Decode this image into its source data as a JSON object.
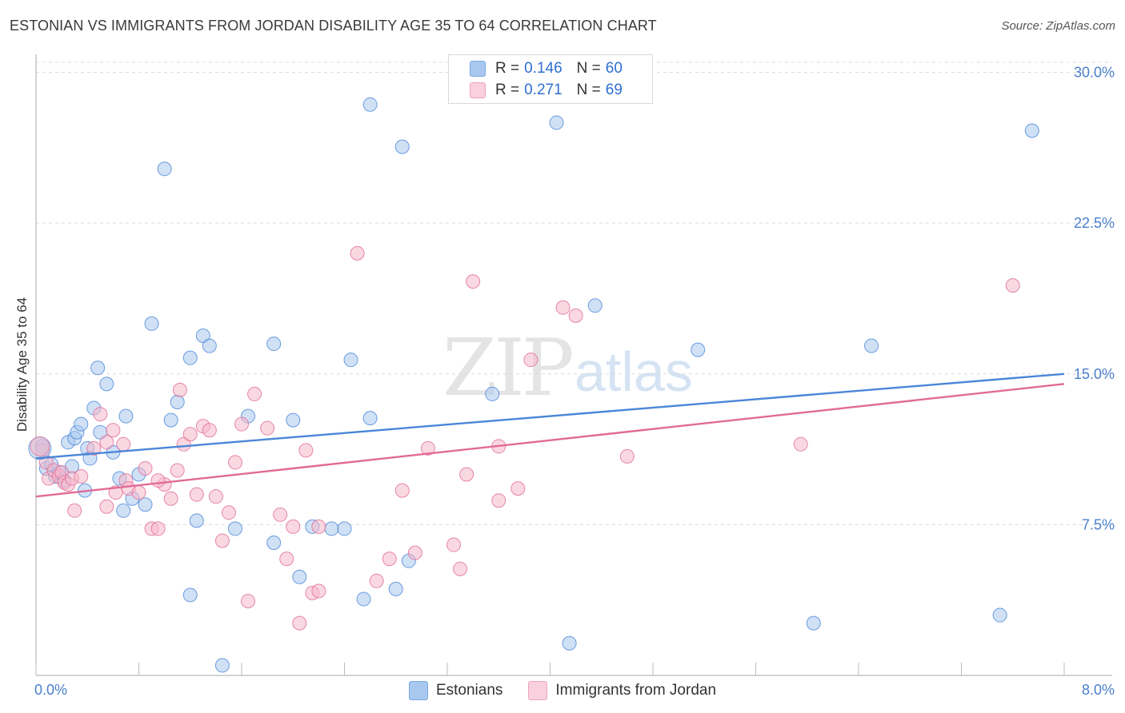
{
  "header": {
    "title": "ESTONIAN VS IMMIGRANTS FROM JORDAN DISABILITY AGE 35 TO 64 CORRELATION CHART",
    "source": "Source: ZipAtlas.com"
  },
  "watermark": {
    "zip": "ZIP",
    "atlas": "atlas"
  },
  "legend": {
    "rows": [
      {
        "r_label": "R =",
        "r_value": "0.146",
        "n_label": "N =",
        "n_value": "60",
        "color": "#a9c8ef"
      },
      {
        "r_label": "R =",
        "r_value": "0.271",
        "n_label": "N =",
        "n_value": "69",
        "color": "#f5b8cb"
      }
    ]
  },
  "bottom_legend": [
    {
      "label": "Estonians",
      "color": "#a9c8ef"
    },
    {
      "label": "Immigrants from Jordan",
      "color": "#f5b8cb"
    }
  ],
  "chart_data": {
    "type": "scatter",
    "title": "ESTONIAN VS IMMIGRANTS FROM JORDAN DISABILITY AGE 35 TO 64 CORRELATION CHART",
    "xlabel": "",
    "ylabel": "Disability Age 35 to 64",
    "xlim": [
      0,
      8
    ],
    "ylim": [
      0,
      30.5
    ],
    "x_tick_labels": [
      "0.0%",
      "8.0%"
    ],
    "y_ticks": [
      7.5,
      15.0,
      22.5,
      30.0
    ],
    "y_tick_labels": [
      "7.5%",
      "15.0%",
      "22.5%",
      "30.0%"
    ],
    "grid": true,
    "series": [
      {
        "name": "Estonians",
        "color": "#4a86d8",
        "fill": "#a9c8ef",
        "trend": {
          "x": [
            0,
            8
          ],
          "y": [
            10.8,
            15.0
          ]
        },
        "points": [
          [
            0.05,
            11.4
          ],
          [
            0.08,
            10.3
          ],
          [
            0.12,
            10.5
          ],
          [
            0.15,
            9.9
          ],
          [
            0.18,
            10.1
          ],
          [
            0.22,
            9.7
          ],
          [
            0.25,
            11.6
          ],
          [
            0.28,
            10.4
          ],
          [
            0.3,
            11.8
          ],
          [
            0.32,
            12.1
          ],
          [
            0.35,
            12.5
          ],
          [
            0.38,
            9.2
          ],
          [
            0.4,
            11.3
          ],
          [
            0.42,
            10.8
          ],
          [
            0.45,
            13.3
          ],
          [
            0.48,
            15.3
          ],
          [
            0.5,
            12.1
          ],
          [
            0.55,
            14.5
          ],
          [
            0.6,
            11.1
          ],
          [
            0.65,
            9.8
          ],
          [
            0.68,
            8.2
          ],
          [
            0.7,
            12.9
          ],
          [
            0.75,
            8.8
          ],
          [
            0.8,
            10.0
          ],
          [
            0.85,
            8.5
          ],
          [
            0.9,
            17.5
          ],
          [
            1.0,
            25.2
          ],
          [
            1.05,
            12.7
          ],
          [
            1.1,
            13.6
          ],
          [
            1.2,
            15.8
          ],
          [
            1.2,
            4.0
          ],
          [
            1.25,
            7.7
          ],
          [
            1.3,
            16.9
          ],
          [
            1.35,
            16.4
          ],
          [
            1.55,
            7.3
          ],
          [
            1.65,
            12.9
          ],
          [
            1.85,
            6.6
          ],
          [
            1.85,
            16.5
          ],
          [
            2.0,
            12.7
          ],
          [
            2.05,
            4.9
          ],
          [
            2.15,
            7.4
          ],
          [
            2.3,
            7.3
          ],
          [
            2.4,
            7.3
          ],
          [
            2.45,
            15.7
          ],
          [
            2.55,
            3.8
          ],
          [
            2.6,
            12.8
          ],
          [
            2.6,
            28.4
          ],
          [
            2.8,
            4.3
          ],
          [
            2.85,
            26.3
          ],
          [
            2.9,
            5.7
          ],
          [
            3.55,
            14.0
          ],
          [
            4.05,
            27.5
          ],
          [
            4.15,
            1.6
          ],
          [
            4.35,
            18.4
          ],
          [
            5.15,
            16.2
          ],
          [
            6.05,
            2.6
          ],
          [
            6.5,
            16.4
          ],
          [
            7.5,
            3.0
          ],
          [
            7.75,
            27.1
          ],
          [
            1.45,
            0.5
          ]
        ]
      },
      {
        "name": "Immigrants from Jordan",
        "color": "#e06b96",
        "fill": "#f5b8cb",
        "trend": {
          "x": [
            0,
            8
          ],
          "y": [
            8.9,
            14.5
          ]
        },
        "points": [
          [
            0.05,
            11.2
          ],
          [
            0.08,
            10.6
          ],
          [
            0.1,
            9.8
          ],
          [
            0.14,
            10.2
          ],
          [
            0.18,
            9.9
          ],
          [
            0.2,
            10.1
          ],
          [
            0.22,
            9.6
          ],
          [
            0.25,
            9.5
          ],
          [
            0.28,
            9.8
          ],
          [
            0.3,
            8.2
          ],
          [
            0.35,
            9.9
          ],
          [
            0.45,
            11.3
          ],
          [
            0.5,
            13.0
          ],
          [
            0.55,
            11.6
          ],
          [
            0.55,
            8.4
          ],
          [
            0.6,
            12.2
          ],
          [
            0.62,
            9.1
          ],
          [
            0.68,
            11.5
          ],
          [
            0.7,
            9.7
          ],
          [
            0.72,
            9.3
          ],
          [
            0.8,
            9.1
          ],
          [
            0.85,
            10.3
          ],
          [
            0.9,
            7.3
          ],
          [
            0.95,
            7.3
          ],
          [
            1.0,
            9.5
          ],
          [
            1.05,
            8.8
          ],
          [
            1.1,
            10.2
          ],
          [
            1.12,
            14.2
          ],
          [
            1.15,
            11.5
          ],
          [
            1.2,
            12.0
          ],
          [
            1.25,
            9.0
          ],
          [
            1.3,
            12.4
          ],
          [
            1.35,
            12.2
          ],
          [
            1.4,
            8.9
          ],
          [
            1.45,
            6.7
          ],
          [
            1.5,
            8.1
          ],
          [
            1.55,
            10.6
          ],
          [
            1.6,
            12.5
          ],
          [
            1.65,
            3.7
          ],
          [
            1.7,
            14.0
          ],
          [
            1.8,
            12.3
          ],
          [
            1.9,
            8.0
          ],
          [
            1.95,
            5.8
          ],
          [
            2.0,
            7.4
          ],
          [
            2.05,
            2.6
          ],
          [
            2.1,
            11.2
          ],
          [
            2.15,
            4.1
          ],
          [
            2.2,
            7.4
          ],
          [
            2.2,
            4.2
          ],
          [
            2.5,
            21.0
          ],
          [
            2.65,
            4.7
          ],
          [
            2.75,
            5.8
          ],
          [
            2.85,
            9.2
          ],
          [
            2.95,
            6.1
          ],
          [
            3.05,
            11.3
          ],
          [
            3.25,
            6.5
          ],
          [
            3.3,
            5.3
          ],
          [
            3.35,
            10.0
          ],
          [
            3.4,
            19.6
          ],
          [
            3.6,
            11.4
          ],
          [
            3.6,
            8.7
          ],
          [
            3.75,
            9.3
          ],
          [
            3.85,
            15.7
          ],
          [
            4.1,
            18.3
          ],
          [
            4.2,
            17.9
          ],
          [
            4.6,
            10.9
          ],
          [
            5.95,
            11.5
          ],
          [
            7.6,
            19.4
          ],
          [
            0.95,
            9.7
          ]
        ]
      }
    ]
  }
}
